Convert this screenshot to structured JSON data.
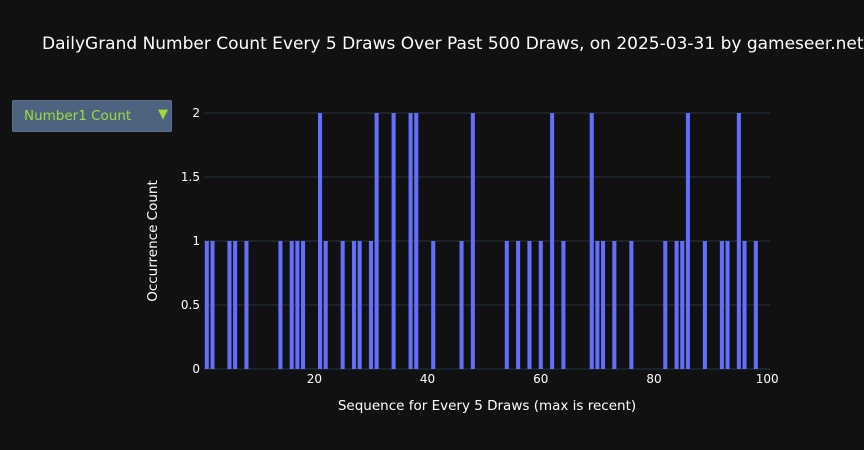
{
  "page": {
    "title": "DailyGrand Number Count Every 5 Draws Over Past 500 Draws, on 2025-03-31 by gameseer.net"
  },
  "dropdown": {
    "selected_label": "Number1 Count",
    "arrow_glyph": "▼"
  },
  "colors": {
    "bar": "#636efa",
    "grid": "#283442",
    "dropdown_text": "#9edc3c",
    "dropdown_bg": "#4d6380"
  },
  "chart_data": {
    "type": "bar",
    "xlabel": "Sequence for Every 5 Draws (max is recent)",
    "ylabel": "Occurrence Count",
    "xlim": [
      0.5,
      100.5
    ],
    "ylim": [
      0,
      2
    ],
    "x_ticks": [
      20,
      40,
      60,
      80,
      100
    ],
    "y_ticks": [
      0,
      0.5,
      1,
      1.5,
      2
    ],
    "y_tick_labels": [
      "0",
      "0.5",
      "1",
      "1.5",
      "2"
    ],
    "grid": true,
    "x": [
      1,
      2,
      3,
      4,
      5,
      6,
      7,
      8,
      9,
      10,
      11,
      12,
      13,
      14,
      15,
      16,
      17,
      18,
      19,
      20,
      21,
      22,
      23,
      24,
      25,
      26,
      27,
      28,
      29,
      30,
      31,
      32,
      33,
      34,
      35,
      36,
      37,
      38,
      39,
      40,
      41,
      42,
      43,
      44,
      45,
      46,
      47,
      48,
      49,
      50,
      51,
      52,
      53,
      54,
      55,
      56,
      57,
      58,
      59,
      60,
      61,
      62,
      63,
      64,
      65,
      66,
      67,
      68,
      69,
      70,
      71,
      72,
      73,
      74,
      75,
      76,
      77,
      78,
      79,
      80,
      81,
      82,
      83,
      84,
      85,
      86,
      87,
      88,
      89,
      90,
      91,
      92,
      93,
      94,
      95,
      96,
      97,
      98,
      99,
      100
    ],
    "values": [
      1,
      1,
      0,
      0,
      1,
      1,
      0,
      1,
      0,
      0,
      0,
      0,
      0,
      1,
      0,
      1,
      1,
      1,
      0,
      0,
      2,
      1,
      0,
      0,
      1,
      0,
      1,
      1,
      0,
      1,
      2,
      0,
      0,
      2,
      0,
      0,
      2,
      2,
      0,
      0,
      1,
      0,
      0,
      0,
      0,
      1,
      0,
      2,
      0,
      0,
      0,
      0,
      0,
      1,
      0,
      1,
      0,
      1,
      0,
      1,
      0,
      2,
      0,
      1,
      0,
      0,
      0,
      0,
      2,
      1,
      1,
      0,
      1,
      0,
      0,
      1,
      0,
      0,
      0,
      0,
      0,
      1,
      0,
      1,
      1,
      2,
      0,
      0,
      1,
      0,
      0,
      1,
      1,
      0,
      2,
      1,
      0,
      1,
      0,
      0
    ]
  }
}
